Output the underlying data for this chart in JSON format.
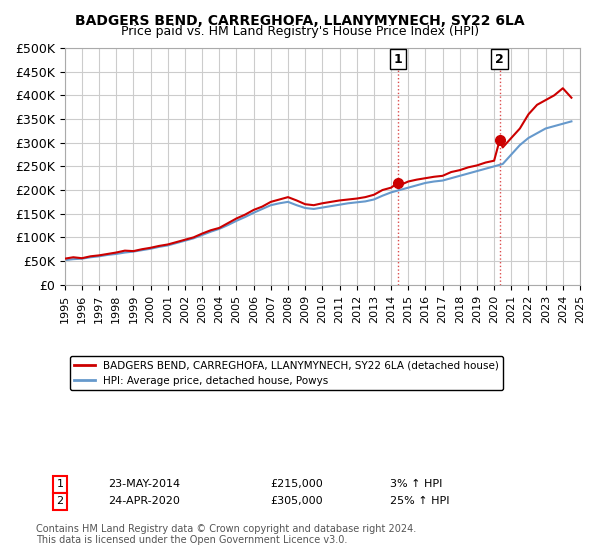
{
  "title": "BADGERS BEND, CARREGHOFA, LLANYMYNECH, SY22 6LA",
  "subtitle": "Price paid vs. HM Land Registry's House Price Index (HPI)",
  "ylim": [
    0,
    500000
  ],
  "yticks": [
    0,
    50000,
    100000,
    150000,
    200000,
    250000,
    300000,
    350000,
    400000,
    450000,
    500000
  ],
  "ytick_labels": [
    "£0",
    "£50K",
    "£100K",
    "£150K",
    "£200K",
    "£250K",
    "£300K",
    "£350K",
    "£400K",
    "£450K",
    "£500K"
  ],
  "xlim_start": 1995,
  "xlim_end": 2025,
  "xticks": [
    1995,
    1996,
    1997,
    1998,
    1999,
    2000,
    2001,
    2002,
    2003,
    2004,
    2005,
    2006,
    2007,
    2008,
    2009,
    2010,
    2011,
    2012,
    2013,
    2014,
    2015,
    2016,
    2017,
    2018,
    2019,
    2020,
    2021,
    2022,
    2023,
    2024,
    2025
  ],
  "red_line_color": "#cc0000",
  "blue_line_color": "#6699cc",
  "marker1_color": "#cc0000",
  "marker2_color": "#cc0000",
  "vline_color": "#cc0000",
  "vline_style": ":",
  "grid_color": "#cccccc",
  "background_color": "#ffffff",
  "legend_label_red": "BADGERS BEND, CARREGHOFA, LLANYMYNECH, SY22 6LA (detached house)",
  "legend_label_blue": "HPI: Average price, detached house, Powys",
  "annotation1_num": "1",
  "annotation1_date": "23-MAY-2014",
  "annotation1_price": "£215,000",
  "annotation1_hpi": "3% ↑ HPI",
  "annotation1_year": 2014.39,
  "annotation1_value": 215000,
  "annotation2_num": "2",
  "annotation2_date": "24-APR-2020",
  "annotation2_price": "£305,000",
  "annotation2_hpi": "25% ↑ HPI",
  "annotation2_year": 2020.32,
  "annotation2_value": 305000,
  "footnote": "Contains HM Land Registry data © Crown copyright and database right 2024.\nThis data is licensed under the Open Government Licence v3.0.",
  "red_x": [
    1995.0,
    1995.5,
    1996.0,
    1996.5,
    1997.0,
    1997.5,
    1998.0,
    1998.5,
    1999.0,
    1999.5,
    2000.0,
    2000.5,
    2001.0,
    2001.5,
    2002.0,
    2002.5,
    2003.0,
    2003.5,
    2004.0,
    2004.5,
    2005.0,
    2005.5,
    2006.0,
    2006.5,
    2007.0,
    2007.5,
    2008.0,
    2008.5,
    2009.0,
    2009.5,
    2010.0,
    2010.5,
    2011.0,
    2011.5,
    2012.0,
    2012.5,
    2013.0,
    2013.5,
    2014.0,
    2014.39,
    2014.5,
    2015.0,
    2015.5,
    2016.0,
    2016.5,
    2017.0,
    2017.5,
    2018.0,
    2018.5,
    2019.0,
    2019.5,
    2020.0,
    2020.32,
    2020.5,
    2021.0,
    2021.5,
    2022.0,
    2022.5,
    2023.0,
    2023.5,
    2024.0,
    2024.5
  ],
  "red_y": [
    55000,
    58000,
    56000,
    60000,
    62000,
    65000,
    68000,
    72000,
    71000,
    75000,
    78000,
    82000,
    85000,
    90000,
    95000,
    100000,
    108000,
    115000,
    120000,
    130000,
    140000,
    148000,
    158000,
    165000,
    175000,
    180000,
    185000,
    178000,
    170000,
    168000,
    172000,
    175000,
    178000,
    180000,
    182000,
    185000,
    190000,
    200000,
    205000,
    215000,
    210000,
    218000,
    222000,
    225000,
    228000,
    230000,
    238000,
    242000,
    248000,
    252000,
    258000,
    262000,
    305000,
    290000,
    310000,
    330000,
    360000,
    380000,
    390000,
    400000,
    415000,
    395000
  ],
  "blue_x": [
    1995.0,
    1995.5,
    1996.0,
    1996.5,
    1997.0,
    1997.5,
    1998.0,
    1998.5,
    1999.0,
    1999.5,
    2000.0,
    2000.5,
    2001.0,
    2001.5,
    2002.0,
    2002.5,
    2003.0,
    2003.5,
    2004.0,
    2004.5,
    2005.0,
    2005.5,
    2006.0,
    2006.5,
    2007.0,
    2007.5,
    2008.0,
    2008.5,
    2009.0,
    2009.5,
    2010.0,
    2010.5,
    2011.0,
    2011.5,
    2012.0,
    2012.5,
    2013.0,
    2013.5,
    2014.0,
    2014.5,
    2015.0,
    2015.5,
    2016.0,
    2016.5,
    2017.0,
    2017.5,
    2018.0,
    2018.5,
    2019.0,
    2019.5,
    2020.0,
    2020.5,
    2021.0,
    2021.5,
    2022.0,
    2022.5,
    2023.0,
    2023.5,
    2024.0,
    2024.5
  ],
  "blue_y": [
    52000,
    54000,
    55000,
    58000,
    60000,
    63000,
    65000,
    68000,
    70000,
    73000,
    76000,
    80000,
    83000,
    88000,
    93000,
    98000,
    105000,
    112000,
    118000,
    126000,
    135000,
    143000,
    152000,
    160000,
    168000,
    172000,
    175000,
    168000,
    162000,
    160000,
    163000,
    166000,
    169000,
    172000,
    174000,
    176000,
    180000,
    188000,
    195000,
    200000,
    205000,
    210000,
    215000,
    218000,
    220000,
    225000,
    230000,
    235000,
    240000,
    245000,
    250000,
    255000,
    275000,
    295000,
    310000,
    320000,
    330000,
    335000,
    340000,
    345000
  ]
}
